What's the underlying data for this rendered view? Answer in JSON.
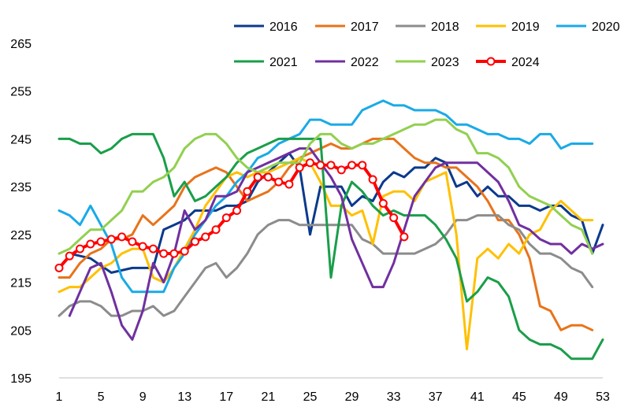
{
  "chart_data": {
    "type": "line",
    "title": "",
    "xlabel": "",
    "ylabel": "",
    "ylim": [
      195,
      265
    ],
    "yticks": [
      195,
      205,
      215,
      225,
      235,
      245,
      255,
      265
    ],
    "xlim": [
      1,
      53
    ],
    "xticks": [
      1,
      5,
      9,
      13,
      17,
      21,
      25,
      29,
      33,
      37,
      41,
      45,
      49,
      53
    ],
    "grid": false,
    "legend_position": "top",
    "series": [
      {
        "name": "2016",
        "color": "#0B3A8C",
        "x": [
          2,
          4,
          6,
          8,
          9,
          10,
          11,
          12,
          13,
          14,
          15,
          16,
          17,
          18,
          19,
          20,
          21,
          22,
          23,
          24,
          25,
          26,
          27,
          28,
          29,
          30,
          31,
          32,
          33,
          34,
          35,
          36,
          37,
          38,
          39,
          40,
          41,
          42,
          43,
          44,
          45,
          46,
          47,
          48,
          49,
          50,
          51,
          52,
          53
        ],
        "y": [
          221,
          220,
          217,
          218,
          218,
          218,
          226,
          227,
          228,
          230,
          230,
          230,
          231,
          231,
          232,
          236,
          238,
          240,
          242,
          239,
          225,
          235,
          235,
          235,
          231,
          233,
          232,
          236,
          238,
          237,
          239,
          239,
          241,
          240,
          235,
          236,
          233,
          235,
          233,
          233,
          231,
          231,
          230,
          231,
          231,
          229,
          228,
          221,
          227
        ]
      },
      {
        "name": "2017",
        "color": "#E8731A",
        "x": [
          1,
          2,
          3,
          4,
          5,
          6,
          7,
          8,
          9,
          10,
          11,
          12,
          13,
          14,
          15,
          16,
          17,
          18,
          19,
          20,
          21,
          22,
          23,
          24,
          25,
          26,
          27,
          28,
          29,
          30,
          31,
          32,
          33,
          34,
          35,
          36,
          37,
          38,
          39,
          40,
          41,
          42,
          43,
          44,
          45,
          46,
          47,
          48,
          49,
          50,
          51,
          52
        ],
        "y": [
          216,
          216,
          219,
          221,
          222,
          224,
          224,
          225,
          229,
          227,
          229,
          231,
          235,
          237,
          238,
          239,
          238,
          235,
          232,
          233,
          234,
          236,
          239,
          241,
          242,
          243,
          244,
          243,
          243,
          244,
          245,
          245,
          245,
          243,
          241,
          240,
          240,
          239,
          239,
          237,
          235,
          232,
          228,
          228,
          225,
          220,
          210,
          209,
          205,
          206,
          206,
          205
        ]
      },
      {
        "name": "2018",
        "color": "#8C8C8C",
        "x": [
          1,
          2,
          3,
          4,
          5,
          6,
          7,
          8,
          9,
          10,
          11,
          12,
          13,
          14,
          15,
          16,
          17,
          18,
          19,
          20,
          21,
          22,
          23,
          24,
          25,
          26,
          27,
          28,
          29,
          30,
          31,
          32,
          33,
          34,
          35,
          36,
          37,
          38,
          39,
          40,
          41,
          42,
          43,
          44,
          45,
          46,
          47,
          48,
          49,
          50,
          51,
          52
        ],
        "y": [
          208,
          210,
          211,
          211,
          210,
          208,
          208,
          209,
          209,
          210,
          208,
          209,
          212,
          215,
          218,
          219,
          216,
          218,
          221,
          225,
          227,
          228,
          228,
          227,
          227,
          227,
          227,
          227,
          227,
          224,
          223,
          221,
          221,
          221,
          221,
          222,
          223,
          225,
          228,
          228,
          229,
          229,
          229,
          227,
          226,
          223,
          221,
          221,
          220,
          218,
          217,
          214
        ]
      },
      {
        "name": "2019",
        "color": "#FFC000",
        "x": [
          1,
          2,
          3,
          4,
          5,
          6,
          7,
          8,
          9,
          10,
          11,
          12,
          13,
          14,
          15,
          16,
          17,
          18,
          19,
          20,
          21,
          22,
          23,
          24,
          25,
          26,
          27,
          28,
          29,
          30,
          31,
          32,
          33,
          34,
          35,
          36,
          37,
          38,
          39,
          40,
          41,
          42,
          43,
          44,
          45,
          46,
          47,
          48,
          49,
          50,
          51,
          52
        ],
        "y": [
          213,
          214,
          214,
          216,
          218,
          219,
          221,
          222,
          222,
          216,
          215,
          218,
          222,
          226,
          231,
          234,
          237,
          238,
          237,
          238,
          238,
          239,
          240,
          241,
          240,
          236,
          231,
          231,
          229,
          230,
          223,
          233,
          234,
          234,
          232,
          236,
          237,
          238,
          225,
          201,
          220,
          222,
          220,
          223,
          221,
          225,
          226,
          230,
          232,
          230,
          228,
          228
        ]
      },
      {
        "name": "2020",
        "color": "#1AAAE6",
        "x": [
          1,
          2,
          3,
          4,
          5,
          6,
          7,
          8,
          9,
          10,
          11,
          12,
          13,
          14,
          15,
          16,
          17,
          18,
          19,
          20,
          21,
          22,
          23,
          24,
          25,
          26,
          27,
          28,
          29,
          30,
          31,
          32,
          33,
          34,
          35,
          36,
          37,
          38,
          39,
          40,
          41,
          42,
          43,
          44,
          45,
          46,
          47,
          48,
          49,
          50,
          51,
          52
        ],
        "y": [
          230,
          229,
          227,
          231,
          227,
          223,
          216,
          213,
          213,
          213,
          213,
          218,
          221,
          225,
          228,
          231,
          233,
          236,
          238,
          241,
          242,
          244,
          245,
          246,
          249,
          249,
          248,
          248,
          248,
          251,
          252,
          253,
          252,
          252,
          251,
          251,
          251,
          250,
          248,
          248,
          247,
          246,
          246,
          245,
          245,
          244,
          246,
          246,
          243,
          244,
          244,
          244
        ]
      },
      {
        "name": "2021",
        "color": "#1A9E4A",
        "x": [
          1,
          2,
          3,
          4,
          5,
          6,
          7,
          8,
          9,
          10,
          11,
          12,
          13,
          14,
          15,
          16,
          17,
          18,
          19,
          20,
          21,
          22,
          23,
          24,
          25,
          26,
          27,
          28,
          29,
          30,
          31,
          32,
          33,
          34,
          35,
          36,
          37,
          38,
          39,
          40,
          41,
          42,
          43,
          44,
          45,
          46,
          47,
          48,
          49,
          50,
          51,
          52,
          53
        ],
        "y": [
          245,
          245,
          244,
          244,
          242,
          243,
          245,
          246,
          246,
          246,
          241,
          233,
          236,
          232,
          233,
          235,
          237,
          240,
          242,
          243,
          244,
          245,
          245,
          245,
          245,
          245,
          216,
          231,
          236,
          234,
          231,
          229,
          230,
          229,
          229,
          229,
          227,
          224,
          220,
          211,
          213,
          216,
          215,
          212,
          205,
          203,
          202,
          202,
          201,
          199,
          199,
          199,
          203
        ]
      },
      {
        "name": "2022",
        "color": "#7030A0",
        "x": [
          2,
          3,
          4,
          5,
          6,
          7,
          8,
          9,
          10,
          11,
          12,
          13,
          14,
          15,
          16,
          17,
          18,
          19,
          20,
          21,
          22,
          23,
          24,
          25,
          26,
          27,
          28,
          29,
          30,
          31,
          32,
          33,
          34,
          35,
          36,
          37,
          38,
          39,
          40,
          41,
          42,
          43,
          44,
          45,
          46,
          47,
          48,
          49,
          50,
          51,
          52,
          53
        ],
        "y": [
          208,
          213,
          218,
          219,
          213,
          206,
          203,
          209,
          219,
          215,
          221,
          230,
          226,
          228,
          233,
          233,
          234,
          238,
          239,
          240,
          241,
          242,
          243,
          243,
          240,
          237,
          233,
          224,
          219,
          214,
          214,
          219,
          226,
          233,
          236,
          239,
          240,
          240,
          240,
          240,
          238,
          236,
          232,
          227,
          226,
          224,
          223,
          223,
          221,
          223,
          222,
          223
        ]
      },
      {
        "name": "2023",
        "color": "#92D050",
        "x": [
          1,
          2,
          3,
          4,
          5,
          6,
          7,
          8,
          9,
          10,
          11,
          12,
          13,
          14,
          15,
          16,
          17,
          18,
          19,
          20,
          21,
          22,
          23,
          24,
          25,
          26,
          27,
          28,
          29,
          30,
          31,
          32,
          33,
          34,
          35,
          36,
          37,
          38,
          39,
          40,
          41,
          42,
          43,
          44,
          45,
          46,
          47,
          48,
          49,
          50,
          51,
          52
        ],
        "y": [
          221,
          222,
          224,
          226,
          226,
          228,
          230,
          234,
          234,
          236,
          237,
          239,
          243,
          245,
          246,
          246,
          244,
          241,
          239,
          238,
          239,
          240,
          240,
          240,
          244,
          246,
          246,
          244,
          243,
          244,
          244,
          245,
          246,
          247,
          248,
          248,
          249,
          249,
          247,
          246,
          242,
          242,
          241,
          239,
          235,
          233,
          232,
          231,
          229,
          227,
          226,
          221
        ]
      },
      {
        "name": "2024",
        "color": "#FF0000",
        "x": [
          1,
          2,
          3,
          4,
          5,
          6,
          7,
          8,
          9,
          10,
          11,
          12,
          13,
          14,
          15,
          16,
          17,
          18,
          19,
          20,
          21,
          22,
          23,
          24,
          25,
          26,
          27,
          28,
          29,
          30,
          31,
          32,
          33,
          34
        ],
        "y": [
          218,
          220.5,
          222,
          223,
          223.5,
          224,
          224.5,
          223.5,
          222.5,
          222,
          221,
          221,
          221.5,
          223.5,
          224.5,
          226,
          228.5,
          230,
          234,
          237,
          237,
          236,
          235.5,
          239,
          240,
          239.5,
          239.5,
          238.5,
          239.5,
          239.5,
          236.5,
          231.5,
          228.5,
          224.5
        ]
      }
    ]
  }
}
